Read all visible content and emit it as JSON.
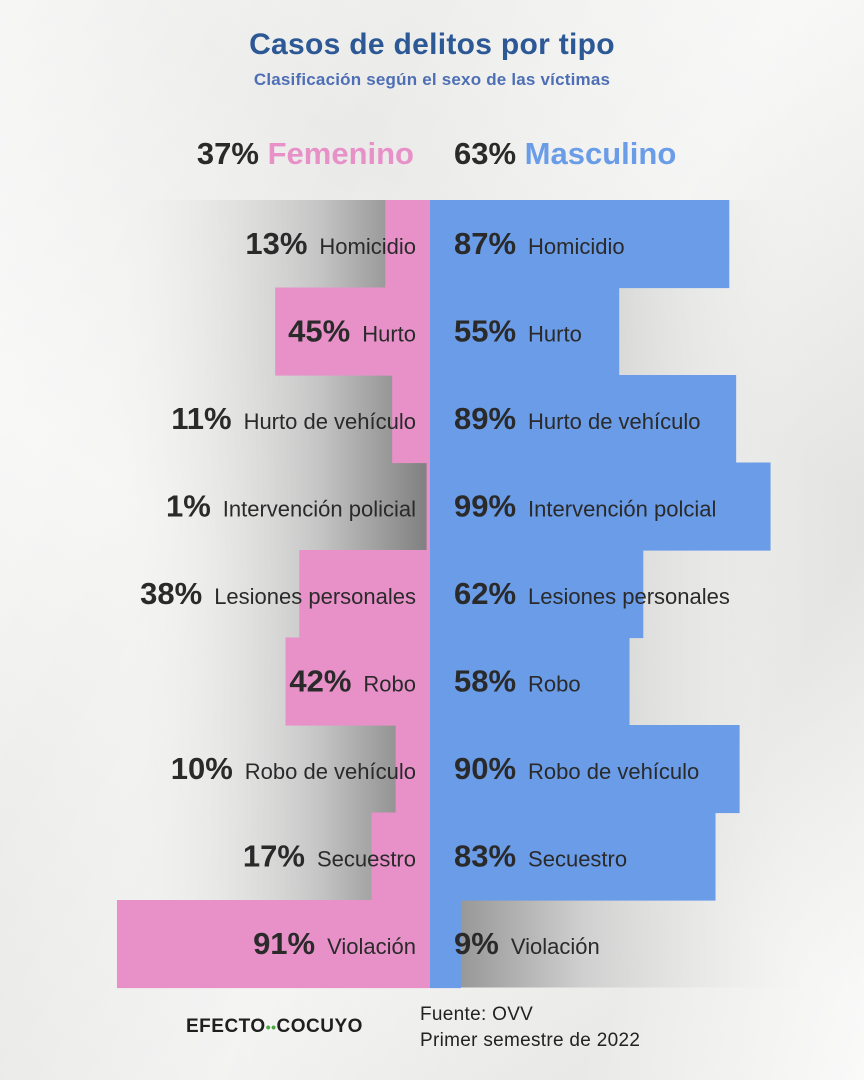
{
  "title": "Casos de delitos por tipo",
  "subtitle": "Clasificación según el sexo de las víctimas",
  "header": {
    "female_pct": "37%",
    "female_label": "Femenino",
    "male_pct": "63%",
    "male_label": "Masculino"
  },
  "colors": {
    "female": "#e891c9",
    "male": "#6a9ce8",
    "title": "#2c5896",
    "subtitle": "#4e6fb5",
    "text": "#2a2a2a"
  },
  "chart_data": {
    "type": "bar",
    "orientation": "horizontal",
    "layout": "diverging",
    "categories": [
      "Homicidio",
      "Hurto",
      "Hurto de vehículo",
      "Intervención policial",
      "Lesiones personales",
      "Robo",
      "Robo de vehículo",
      "Secuestro",
      "Violación"
    ],
    "male_categories": [
      "Homicidio",
      "Hurto",
      "Hurto de vehículo",
      "Intervención polcial",
      "Lesiones personales",
      "Robo",
      "Robo de vehículo",
      "Secuestro",
      "Violación"
    ],
    "series": [
      {
        "name": "Femenino",
        "values": [
          13,
          45,
          11,
          1,
          38,
          42,
          10,
          17,
          91
        ]
      },
      {
        "name": "Masculino",
        "values": [
          87,
          55,
          89,
          99,
          62,
          58,
          90,
          83,
          9
        ]
      }
    ],
    "unit": "%",
    "xlim": [
      0,
      100
    ]
  },
  "footer": {
    "logo_left": "EFECTO",
    "logo_dots": "••",
    "logo_right": "COCUYO",
    "source": "Fuente: OVV",
    "period": "Primer semestre de 2022"
  }
}
